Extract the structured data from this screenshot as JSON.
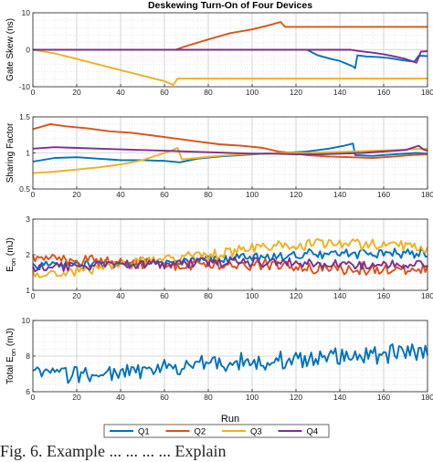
{
  "figure": {
    "title": "Deskewing Turn-On of Four Devices",
    "xlabel": "Run",
    "caption": "Fig. 6. Example ... ... ... ... Explain"
  },
  "chart_data": [
    {
      "type": "line",
      "title": "Deskewing Turn-On of Four Devices",
      "ylabel": "Gate Skew (ns)",
      "xlabel": "",
      "xlim": [
        0,
        180
      ],
      "ylim": [
        -10,
        10
      ],
      "xticks": [
        0,
        20,
        40,
        60,
        80,
        100,
        120,
        140,
        160,
        180
      ],
      "yticks": [
        -10,
        0,
        10
      ],
      "grid": true,
      "series": [
        {
          "name": "Q1",
          "color": "#0072BD",
          "points": [
            [
              0,
              0
            ],
            [
              114,
              0
            ],
            [
              118,
              0
            ],
            [
              125,
              0
            ],
            [
              130,
              -1.5
            ],
            [
              136,
              -2.5
            ],
            [
              140,
              -3
            ],
            [
              144,
              -4
            ],
            [
              146,
              -4.5
            ],
            [
              147,
              -5
            ],
            [
              148,
              -1.5
            ],
            [
              152,
              -1.8
            ],
            [
              158,
              -2
            ],
            [
              162,
              -2.2
            ],
            [
              165,
              -2.5
            ],
            [
              168,
              -2.8
            ],
            [
              171,
              -3
            ],
            [
              174,
              -3.2
            ],
            [
              176,
              -1.6
            ],
            [
              180,
              -1.7
            ]
          ]
        },
        {
          "name": "Q2",
          "color": "#D95319",
          "points": [
            [
              0,
              0
            ],
            [
              65,
              0
            ],
            [
              70,
              1
            ],
            [
              80,
              2.8
            ],
            [
              90,
              4.5
            ],
            [
              100,
              5.5
            ],
            [
              108,
              6.7
            ],
            [
              113,
              7.5
            ],
            [
              115,
              6.2
            ],
            [
              180,
              6.2
            ]
          ]
        },
        {
          "name": "Q3",
          "color": "#EDB120",
          "points": [
            [
              0,
              0
            ],
            [
              10,
              -1
            ],
            [
              20,
              -2.5
            ],
            [
              30,
              -4
            ],
            [
              40,
              -5.5
            ],
            [
              50,
              -7
            ],
            [
              60,
              -8.5
            ],
            [
              64,
              -9.5
            ],
            [
              66,
              -7.8
            ],
            [
              180,
              -7.8
            ]
          ]
        },
        {
          "name": "Q4",
          "color": "#7E2F8E",
          "points": [
            [
              0,
              0
            ],
            [
              145,
              0
            ],
            [
              148,
              -0.3
            ],
            [
              155,
              -0.8
            ],
            [
              160,
              -1.2
            ],
            [
              165,
              -1.8
            ],
            [
              170,
              -2.5
            ],
            [
              175,
              -3.5
            ],
            [
              177,
              -0.5
            ],
            [
              180,
              -0.4
            ]
          ]
        }
      ]
    },
    {
      "type": "line",
      "ylabel": "Sharing Factor",
      "xlim": [
        0,
        180
      ],
      "ylim": [
        0.5,
        1.5
      ],
      "xticks": [
        0,
        20,
        40,
        60,
        80,
        100,
        120,
        140,
        160,
        180
      ],
      "yticks": [
        0.5,
        1,
        1.5
      ],
      "grid": true,
      "series": [
        {
          "name": "Q1",
          "color": "#0072BD",
          "points": [
            [
              0,
              0.88
            ],
            [
              10,
              0.93
            ],
            [
              20,
              0.94
            ],
            [
              30,
              0.92
            ],
            [
              40,
              0.9
            ],
            [
              50,
              0.9
            ],
            [
              60,
              0.89
            ],
            [
              67,
              0.87
            ],
            [
              75,
              0.92
            ],
            [
              85,
              0.95
            ],
            [
              95,
              0.97
            ],
            [
              105,
              0.99
            ],
            [
              115,
              1.0
            ],
            [
              125,
              1.02
            ],
            [
              135,
              1.06
            ],
            [
              142,
              1.1
            ],
            [
              146,
              1.13
            ],
            [
              147,
              0.97
            ],
            [
              155,
              0.96
            ],
            [
              165,
              0.98
            ],
            [
              175,
              1.0
            ],
            [
              180,
              0.99
            ]
          ]
        },
        {
          "name": "Q2",
          "color": "#D95319",
          "points": [
            [
              0,
              1.33
            ],
            [
              8,
              1.4
            ],
            [
              15,
              1.37
            ],
            [
              25,
              1.34
            ],
            [
              35,
              1.3
            ],
            [
              45,
              1.28
            ],
            [
              55,
              1.24
            ],
            [
              65,
              1.2
            ],
            [
              75,
              1.16
            ],
            [
              85,
              1.12
            ],
            [
              95,
              1.1
            ],
            [
              105,
              1.07
            ],
            [
              112,
              1.02
            ],
            [
              118,
              1.0
            ],
            [
              125,
              0.97
            ],
            [
              135,
              0.95
            ],
            [
              145,
              0.94
            ],
            [
              155,
              0.93
            ],
            [
              165,
              0.95
            ],
            [
              172,
              0.97
            ],
            [
              180,
              0.98
            ]
          ]
        },
        {
          "name": "Q3",
          "color": "#EDB120",
          "points": [
            [
              0,
              0.72
            ],
            [
              10,
              0.74
            ],
            [
              20,
              0.77
            ],
            [
              30,
              0.8
            ],
            [
              40,
              0.84
            ],
            [
              50,
              0.9
            ],
            [
              58,
              0.98
            ],
            [
              63,
              1.03
            ],
            [
              66,
              1.07
            ],
            [
              68,
              0.91
            ],
            [
              75,
              0.93
            ],
            [
              85,
              0.96
            ],
            [
              95,
              0.98
            ],
            [
              105,
              0.99
            ],
            [
              115,
              1.0
            ],
            [
              125,
              1.0
            ],
            [
              135,
              1.01
            ],
            [
              145,
              1.02
            ],
            [
              155,
              1.03
            ],
            [
              165,
              1.04
            ],
            [
              172,
              1.05
            ],
            [
              180,
              1.06
            ]
          ]
        },
        {
          "name": "Q4",
          "color": "#7E2F8E",
          "points": [
            [
              0,
              1.06
            ],
            [
              10,
              1.08
            ],
            [
              20,
              1.07
            ],
            [
              30,
              1.06
            ],
            [
              40,
              1.05
            ],
            [
              50,
              1.04
            ],
            [
              60,
              1.03
            ],
            [
              70,
              1.02
            ],
            [
              80,
              1.01
            ],
            [
              90,
              1.0
            ],
            [
              100,
              0.99
            ],
            [
              110,
              0.99
            ],
            [
              120,
              0.98
            ],
            [
              130,
              0.98
            ],
            [
              140,
              0.99
            ],
            [
              150,
              1.0
            ],
            [
              160,
              1.02
            ],
            [
              170,
              1.04
            ],
            [
              176,
              1.1
            ],
            [
              178,
              1.05
            ],
            [
              180,
              1.03
            ]
          ]
        }
      ]
    },
    {
      "type": "line",
      "ylabel": "E_on (mJ)",
      "xlim": [
        0,
        180
      ],
      "ylim": [
        1,
        3
      ],
      "xticks": [
        0,
        20,
        40,
        60,
        80,
        100,
        120,
        140,
        160,
        180
      ],
      "yticks": [
        1,
        2,
        3
      ],
      "grid": true,
      "series": [
        {
          "name": "Q1",
          "color": "#0072BD",
          "trend": [
            [
              0,
              1.7
            ],
            [
              60,
              1.75
            ],
            [
              90,
              1.9
            ],
            [
              120,
              2.0
            ],
            [
              150,
              2.05
            ],
            [
              180,
              2.05
            ]
          ],
          "noise": 0.12
        },
        {
          "name": "Q2",
          "color": "#D95319",
          "trend": [
            [
              0,
              1.9
            ],
            [
              60,
              1.75
            ],
            [
              100,
              1.7
            ],
            [
              140,
              1.6
            ],
            [
              180,
              1.6
            ]
          ],
          "noise": 0.15
        },
        {
          "name": "Q3",
          "color": "#EDB120",
          "trend": [
            [
              0,
              1.45
            ],
            [
              30,
              1.6
            ],
            [
              60,
              1.85
            ],
            [
              100,
              2.15
            ],
            [
              140,
              2.35
            ],
            [
              180,
              2.2
            ]
          ],
          "noise": 0.15
        },
        {
          "name": "Q4",
          "color": "#7E2F8E",
          "trend": [
            [
              0,
              1.65
            ],
            [
              60,
              1.75
            ],
            [
              100,
              1.8
            ],
            [
              140,
              1.7
            ],
            [
              180,
              1.75
            ]
          ],
          "noise": 0.12
        }
      ]
    },
    {
      "type": "line",
      "ylabel": "Total E_on (mJ)",
      "xlabel": "Run",
      "xlim": [
        0,
        180
      ],
      "ylim": [
        6,
        10
      ],
      "xticks": [
        0,
        20,
        40,
        60,
        80,
        100,
        120,
        140,
        160,
        180
      ],
      "yticks": [
        6,
        8,
        10
      ],
      "grid": true,
      "series": [
        {
          "name": "Q1",
          "color": "#0072BD",
          "trend": [
            [
              0,
              7.0
            ],
            [
              40,
              7.0
            ],
            [
              80,
              7.6
            ],
            [
              120,
              7.8
            ],
            [
              150,
              8.1
            ],
            [
              180,
              8.2
            ]
          ],
          "noise": 0.45
        }
      ]
    }
  ],
  "legend": {
    "placement": "bottom-center",
    "entries": [
      {
        "label": "Q1",
        "color": "#0072BD"
      },
      {
        "label": "Q2",
        "color": "#D95319"
      },
      {
        "label": "Q3",
        "color": "#EDB120"
      },
      {
        "label": "Q4",
        "color": "#7E2F8E"
      }
    ]
  }
}
